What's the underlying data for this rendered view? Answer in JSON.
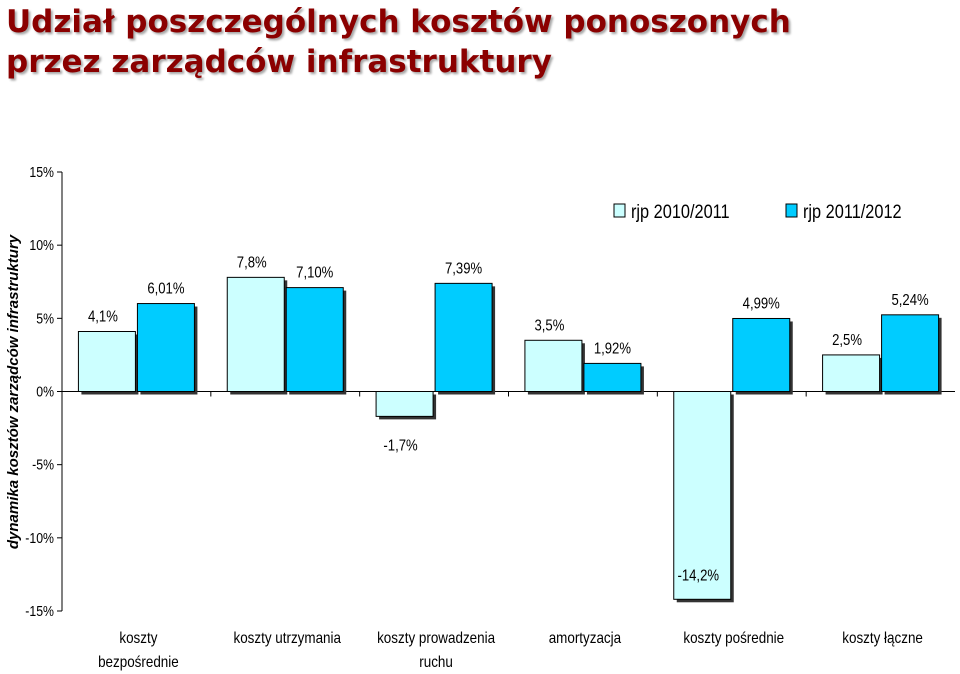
{
  "title_line1": "Udział poszczególnych kosztów ponoszonych",
  "title_line2": "przez zarządców infrastruktury",
  "colors": {
    "title": "#8b0000",
    "series1": "#ccffff",
    "series2": "#00ccff",
    "outline": "#000000"
  },
  "chart_data": {
    "type": "bar",
    "ylabel": "dynamika kosztów zarządców infrastruktury",
    "ylim": [
      -15,
      15
    ],
    "yticks": [
      15,
      10,
      5,
      0,
      -5,
      -10,
      -15
    ],
    "ytick_labels": [
      "15%",
      "10%",
      "5%",
      "0%",
      "-5%",
      "-10%",
      "-15%"
    ],
    "categories": [
      [
        "koszty",
        "bezpośrednie"
      ],
      [
        "koszty utrzymania"
      ],
      [
        "koszty prowadzenia",
        "ruchu"
      ],
      [
        "amortyzacja"
      ],
      [
        "koszty pośrednie"
      ],
      [
        "koszty łączne"
      ]
    ],
    "series": [
      {
        "name": "rjp 2010/2011",
        "values": [
          4.1,
          7.8,
          -1.7,
          3.5,
          -14.2,
          2.5
        ],
        "labels": [
          "4,1%",
          "7,8%",
          "-1,7%",
          "3,5%",
          "-14,2%",
          "2,5%"
        ]
      },
      {
        "name": "rjp 2011/2012",
        "values": [
          6.01,
          7.1,
          7.39,
          1.92,
          4.99,
          5.24
        ],
        "labels": [
          "6,01%",
          "7,10%",
          "7,39%",
          "1,92%",
          "4,99%",
          "5,24%"
        ]
      }
    ],
    "grid": false,
    "legend": "top-right"
  }
}
